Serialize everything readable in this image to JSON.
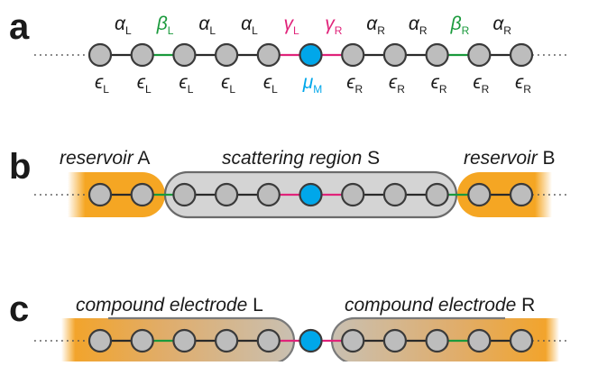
{
  "colors": {
    "site_gray": "#bdbdbd",
    "site_center": "#00a7ea",
    "bond_black": "#2a2a2a",
    "bond_green": "#1a9a3c",
    "bond_pink": "#e0237a",
    "reservoir_orange": "#f5a623",
    "scatter_gray": "#d4d4d4",
    "text_dark": "#1a1a1a"
  },
  "panel_a": {
    "label": "a",
    "hopping_labels": [
      {
        "symbol": "α",
        "sub": "L",
        "color": "#1a1a1a"
      },
      {
        "symbol": "β",
        "sub": "L",
        "color": "#1a9a3c"
      },
      {
        "symbol": "α",
        "sub": "L",
        "color": "#1a1a1a"
      },
      {
        "symbol": "α",
        "sub": "L",
        "color": "#1a1a1a"
      },
      {
        "symbol": "γ",
        "sub": "L",
        "color": "#e0237a"
      },
      {
        "symbol": "γ",
        "sub": "R",
        "color": "#e0237a"
      },
      {
        "symbol": "α",
        "sub": "R",
        "color": "#1a1a1a"
      },
      {
        "symbol": "α",
        "sub": "R",
        "color": "#1a1a1a"
      },
      {
        "symbol": "β",
        "sub": "R",
        "color": "#1a9a3c"
      },
      {
        "symbol": "α",
        "sub": "R",
        "color": "#1a1a1a"
      }
    ],
    "onsite_labels": [
      {
        "symbol": "ϵ",
        "sub": "L",
        "color": "#1a1a1a"
      },
      {
        "symbol": "ϵ",
        "sub": "L",
        "color": "#1a1a1a"
      },
      {
        "symbol": "ϵ",
        "sub": "L",
        "color": "#1a1a1a"
      },
      {
        "symbol": "ϵ",
        "sub": "L",
        "color": "#1a1a1a"
      },
      {
        "symbol": "ϵ",
        "sub": "L",
        "color": "#1a1a1a"
      },
      {
        "symbol": "μ",
        "sub": "M",
        "color": "#00a7ea"
      },
      {
        "symbol": "ϵ",
        "sub": "R",
        "color": "#1a1a1a"
      },
      {
        "symbol": "ϵ",
        "sub": "R",
        "color": "#1a1a1a"
      },
      {
        "symbol": "ϵ",
        "sub": "R",
        "color": "#1a1a1a"
      },
      {
        "symbol": "ϵ",
        "sub": "R",
        "color": "#1a1a1a"
      },
      {
        "symbol": "ϵ",
        "sub": "R",
        "color": "#1a1a1a"
      }
    ],
    "bond_colors": [
      "black",
      "green",
      "black",
      "black",
      "pink",
      "pink",
      "black",
      "black",
      "green",
      "black"
    ]
  },
  "panel_b": {
    "label": "b",
    "reservoir_a": {
      "italic": "reservoir",
      "letter": "A"
    },
    "scattering": {
      "italic": "scattering region",
      "letter": "S"
    },
    "reservoir_b": {
      "italic": "reservoir",
      "letter": "B"
    }
  },
  "panel_c": {
    "label": "c",
    "electrode_l": {
      "italic": "compound electrode",
      "letter": "L"
    },
    "electrode_r": {
      "italic": "compound electrode",
      "letter": "R"
    }
  }
}
